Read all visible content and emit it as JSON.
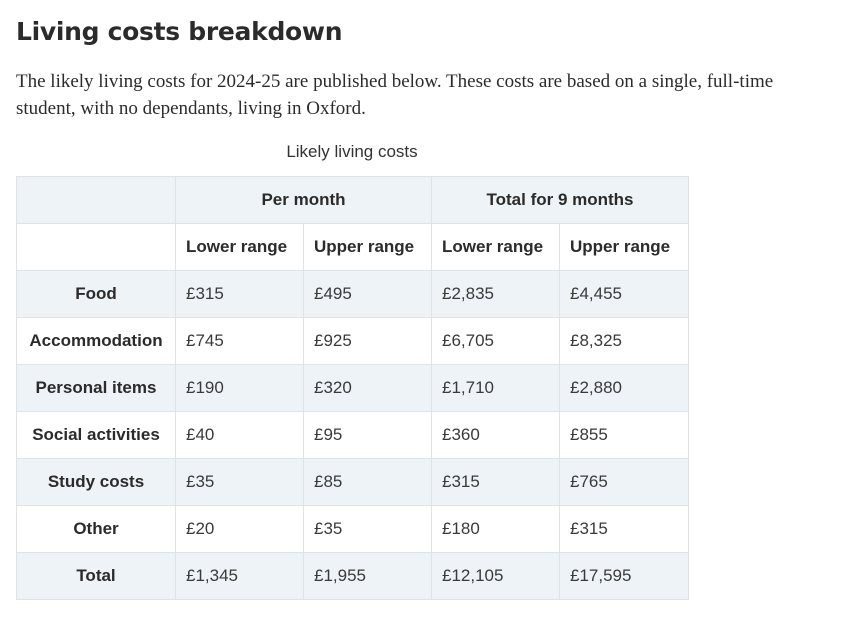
{
  "heading": "Living costs breakdown",
  "intro": "The likely living costs for 2024-25 are published below. These costs are based on a single, full-time student, with no dependants, living in Oxford.",
  "table": {
    "caption": "Likely living costs",
    "groups": [
      "Per month",
      "Total for 9 months"
    ],
    "subheaders": [
      "Lower range",
      "Upper range",
      "Lower range",
      "Upper range"
    ],
    "rows": [
      {
        "label": "Food",
        "values": [
          "£315",
          "£495",
          "£2,835",
          "£4,455"
        ]
      },
      {
        "label": "Accommodation",
        "values": [
          "£745",
          "£925",
          "£6,705",
          "£8,325"
        ]
      },
      {
        "label": "Personal items",
        "values": [
          "£190",
          "£320",
          "£1,710",
          "£2,880"
        ]
      },
      {
        "label": "Social activities",
        "values": [
          "£40",
          "£95",
          "£360",
          "£855"
        ]
      },
      {
        "label": "Study costs",
        "values": [
          "£35",
          "£85",
          "£315",
          "£765"
        ]
      },
      {
        "label": "Other",
        "values": [
          "£20",
          "£35",
          "£180",
          "£315"
        ]
      },
      {
        "label": "Total",
        "values": [
          "£1,345",
          "£1,955",
          "£12,105",
          "£17,595"
        ]
      }
    ]
  },
  "colors": {
    "text": "#2b2b2b",
    "shaded_row": "#edf3f6",
    "border": "#dde3e6"
  }
}
